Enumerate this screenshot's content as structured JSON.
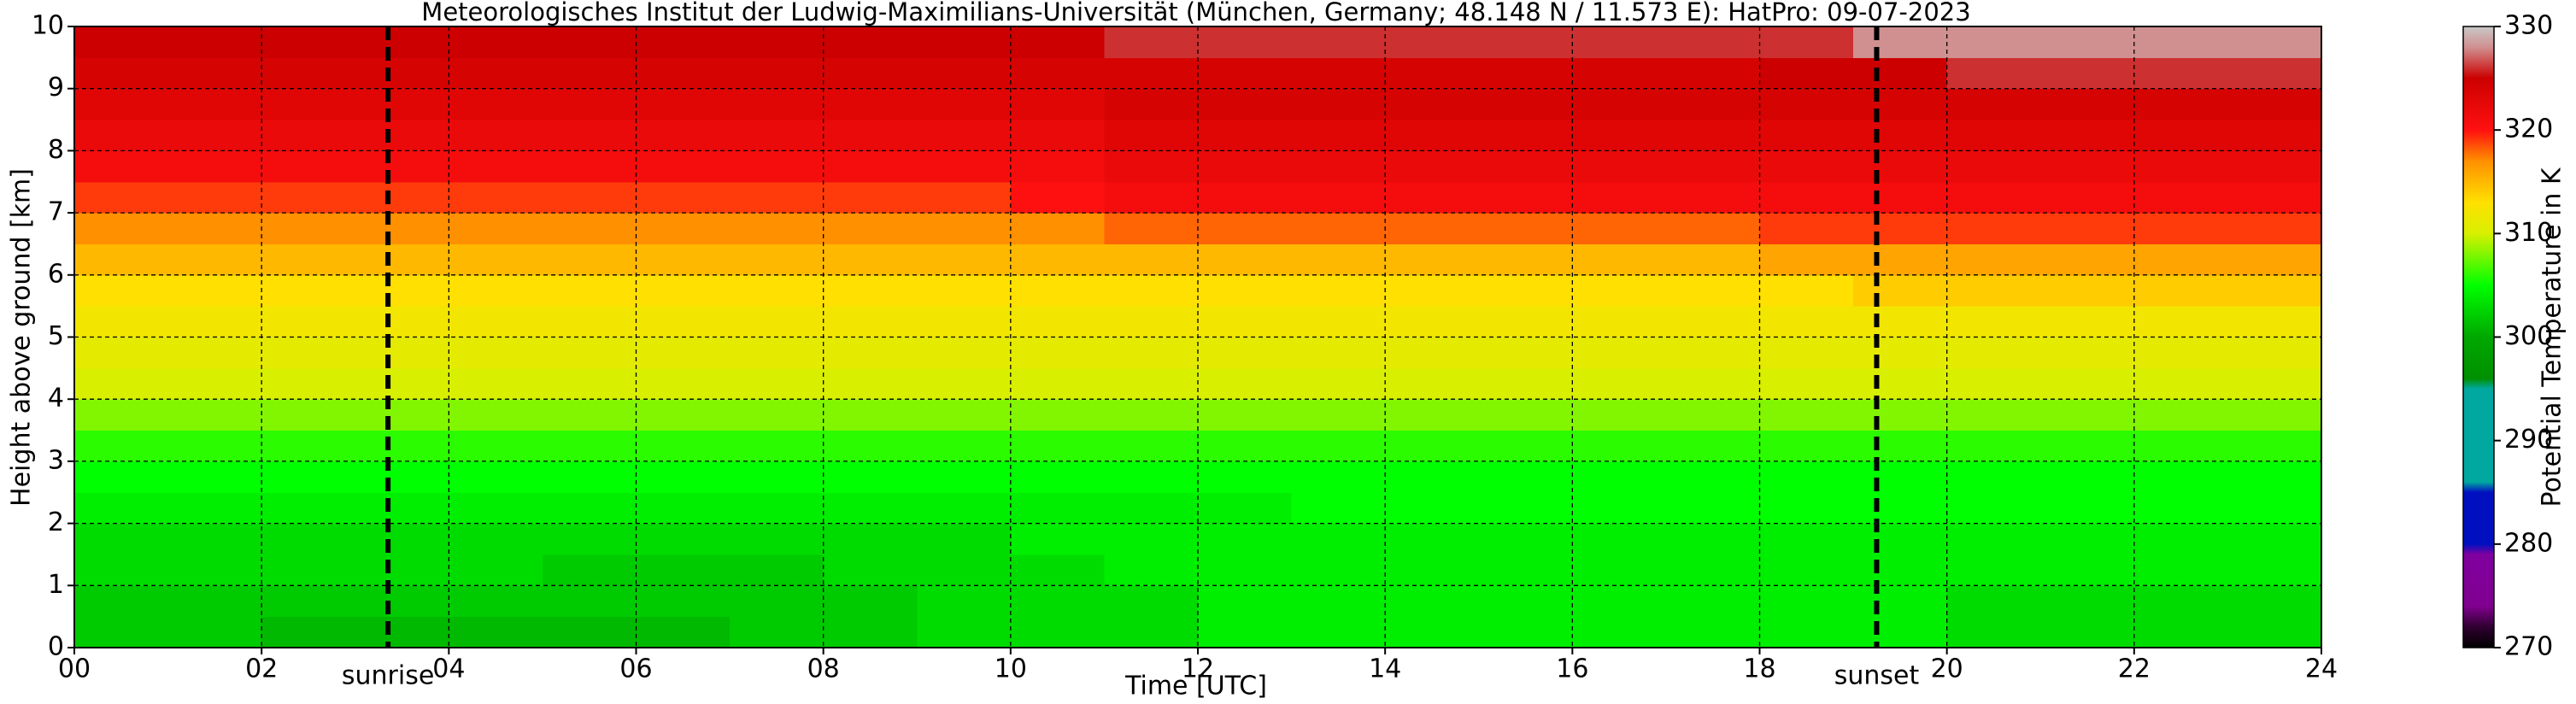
{
  "chart_data": {
    "type": "heatmap",
    "title": "Meteorologisches Institut der Ludwig-Maximilians-Universität (München, Germany; 48.148 N / 11.573 E):    HatPro: 09-07-2023",
    "xlabel": "Time [UTC]",
    "ylabel": "Height above ground [km]",
    "colorbar_label": "Potential Temperature in K",
    "xlim": [
      0,
      24
    ],
    "ylim": [
      0,
      10
    ],
    "clim": [
      270,
      330
    ],
    "xticks": [
      {
        "value": 0,
        "label": "00"
      },
      {
        "value": 2,
        "label": "02"
      },
      {
        "value": 4,
        "label": "04"
      },
      {
        "value": 6,
        "label": "06"
      },
      {
        "value": 8,
        "label": "08"
      },
      {
        "value": 10,
        "label": "10"
      },
      {
        "value": 12,
        "label": "12"
      },
      {
        "value": 14,
        "label": "14"
      },
      {
        "value": 16,
        "label": "16"
      },
      {
        "value": 18,
        "label": "18"
      },
      {
        "value": 20,
        "label": "20"
      },
      {
        "value": 22,
        "label": "22"
      },
      {
        "value": 24,
        "label": "24"
      }
    ],
    "yticks": [
      0,
      1,
      2,
      3,
      4,
      5,
      6,
      7,
      8,
      9,
      10
    ],
    "cticks": [
      270,
      280,
      290,
      300,
      310,
      320,
      330
    ],
    "grid": true,
    "colorscale": [
      [
        270,
        "#000000"
      ],
      [
        272,
        "#300030"
      ],
      [
        274,
        "#800090"
      ],
      [
        279,
        "#8000a0"
      ],
      [
        280,
        "#0010c0"
      ],
      [
        285,
        "#0010c0"
      ],
      [
        286,
        "#00a8a0"
      ],
      [
        295,
        "#00a8a0"
      ],
      [
        296,
        "#009000"
      ],
      [
        300,
        "#00a800"
      ],
      [
        305,
        "#00ff00"
      ],
      [
        310,
        "#d8f000"
      ],
      [
        313,
        "#ffe000"
      ],
      [
        317,
        "#ff9000"
      ],
      [
        320,
        "#ff1010"
      ],
      [
        325,
        "#cc0000"
      ],
      [
        328,
        "#d09090"
      ],
      [
        330,
        "#c8c8c8"
      ]
    ],
    "annotations": [
      {
        "text": "sunrise",
        "x": 3.35
      },
      {
        "text": "sunset",
        "x": 19.25
      }
    ],
    "x_edges": [
      0,
      1,
      2,
      3,
      4,
      5,
      6,
      7,
      8,
      9,
      10,
      11,
      12,
      13,
      14,
      15,
      16,
      17,
      18,
      19,
      20,
      21,
      22,
      23,
      24
    ],
    "y_edges": [
      0,
      0.5,
      1,
      1.5,
      2,
      2.5,
      3,
      3.5,
      4,
      4.5,
      5,
      5.5,
      6,
      6.5,
      7,
      7.5,
      8,
      8.5,
      9,
      9.5,
      10
    ],
    "z": [
      [
        302,
        302,
        301,
        301,
        301,
        301,
        301,
        302,
        302,
        303,
        303,
        303,
        304,
        304,
        304,
        304,
        304,
        304,
        304,
        304,
        303,
        303,
        303,
        303
      ],
      [
        302,
        302,
        302,
        302,
        302,
        302,
        302,
        302,
        302,
        303,
        303,
        303,
        304,
        304,
        304,
        304,
        304,
        304,
        304,
        304,
        303,
        303,
        303,
        303
      ],
      [
        303,
        303,
        303,
        303,
        303,
        302,
        302,
        302,
        303,
        303,
        303,
        304,
        304,
        304,
        304,
        304,
        304,
        304,
        304,
        304,
        304,
        304,
        304,
        304
      ],
      [
        303,
        303,
        303,
        303,
        303,
        303,
        303,
        303,
        303,
        303,
        304,
        304,
        304,
        304,
        304,
        304,
        304,
        304,
        304,
        304,
        304,
        304,
        304,
        304
      ],
      [
        304,
        304,
        304,
        304,
        304,
        304,
        304,
        304,
        304,
        304,
        304,
        304,
        304,
        305,
        305,
        305,
        305,
        305,
        305,
        305,
        305,
        305,
        305,
        305
      ],
      [
        305,
        305,
        305,
        305,
        305,
        305,
        305,
        305,
        305,
        305,
        305,
        305,
        305,
        305,
        305,
        305,
        305,
        305,
        305,
        305,
        305,
        305,
        305,
        305
      ],
      [
        306,
        306,
        306,
        306,
        306,
        306,
        306,
        306,
        306,
        306,
        306,
        306,
        306,
        306,
        306,
        306,
        306,
        306,
        306,
        306,
        306,
        306,
        306,
        306
      ],
      [
        308,
        308,
        308,
        308,
        308,
        308,
        308,
        308,
        308,
        308,
        308,
        308,
        308,
        308,
        308,
        308,
        308,
        308,
        308,
        308,
        308,
        308,
        308,
        308
      ],
      [
        310,
        310,
        310,
        310,
        310,
        310,
        310,
        310,
        310,
        310,
        310,
        310,
        310,
        310,
        310,
        310,
        310,
        310,
        310,
        310,
        310,
        310,
        310,
        310
      ],
      [
        311,
        311,
        311,
        311,
        311,
        311,
        311,
        311,
        311,
        311,
        311,
        311,
        311,
        311,
        311,
        311,
        311,
        311,
        311,
        311,
        311,
        311,
        311,
        311
      ],
      [
        312,
        312,
        312,
        312,
        312,
        312,
        312,
        312,
        312,
        312,
        312,
        312,
        312,
        312,
        312,
        312,
        312,
        312,
        312,
        312,
        312,
        312,
        312,
        312
      ],
      [
        313,
        313,
        313,
        313,
        313,
        313,
        313,
        313,
        313,
        313,
        313,
        313,
        313,
        313,
        313,
        313,
        313,
        313,
        313,
        314,
        314,
        314,
        314,
        314
      ],
      [
        315,
        315,
        315,
        315,
        315,
        315,
        315,
        315,
        315,
        315,
        315,
        315,
        315,
        315,
        315,
        315,
        315,
        315,
        316,
        316,
        316,
        316,
        316,
        316
      ],
      [
        317,
        317,
        317,
        317,
        317,
        317,
        317,
        317,
        317,
        317,
        317,
        318,
        318,
        318,
        318,
        318,
        318,
        318,
        319,
        319,
        319,
        319,
        319,
        319
      ],
      [
        319,
        319,
        319,
        319,
        319,
        319,
        319,
        319,
        319,
        319,
        320,
        321,
        321,
        321,
        321,
        321,
        321,
        321,
        321,
        321,
        321,
        321,
        321,
        321
      ],
      [
        321,
        321,
        321,
        321,
        321,
        321,
        321,
        321,
        321,
        321,
        321,
        322,
        322,
        322,
        322,
        322,
        322,
        322,
        322,
        322,
        322,
        322,
        322,
        322
      ],
      [
        322,
        322,
        322,
        322,
        322,
        322,
        322,
        322,
        322,
        322,
        322,
        323,
        323,
        323,
        323,
        323,
        323,
        323,
        323,
        323,
        323,
        323,
        323,
        323
      ],
      [
        323,
        323,
        323,
        323,
        323,
        323,
        323,
        323,
        323,
        323,
        323,
        324,
        324,
        324,
        324,
        324,
        324,
        324,
        324,
        324,
        324,
        324,
        324,
        324
      ],
      [
        324,
        324,
        324,
        324,
        324,
        324,
        324,
        324,
        324,
        324,
        324,
        324,
        324,
        324,
        324,
        324,
        324,
        324,
        325,
        325,
        326,
        326,
        326,
        326
      ],
      [
        325,
        325,
        325,
        325,
        325,
        325,
        325,
        325,
        325,
        325,
        325,
        326,
        326,
        326,
        326,
        326,
        326,
        326,
        326,
        328,
        328,
        328,
        328,
        328
      ]
    ]
  }
}
